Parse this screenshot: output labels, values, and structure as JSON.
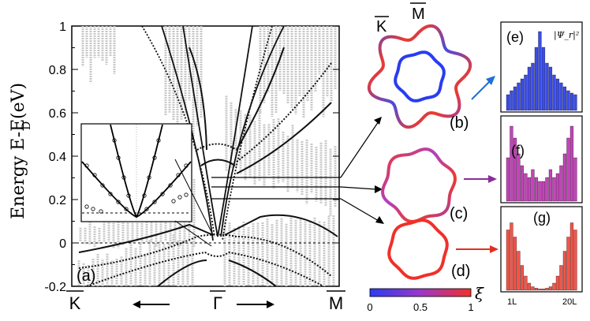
{
  "main_panel": {
    "panel_label": "(a)",
    "ylabel_main": "Energy E-E",
    "ylabel_sub": "D",
    "ylabel_unit": "(eV)",
    "yticks": [
      "1",
      "0.8",
      "0.6",
      "0.4",
      "0.2",
      "0",
      "-0.2"
    ],
    "xticks": [
      "K",
      "Γ",
      "M"
    ]
  },
  "contours": {
    "k_label": "K",
    "m_label": "M",
    "labels": [
      "(b)",
      "(c)",
      "(d)"
    ]
  },
  "colorbar": {
    "ticks": [
      "0",
      "0.5",
      "1"
    ],
    "symbol": "ξ",
    "low_color": "#2a3cf0",
    "mid_color": "#9a37c8",
    "high_color": "#f0302a"
  },
  "histograms": {
    "labels": [
      "(e)",
      "(f)",
      "(g)"
    ],
    "psi_label": "|Ψ_r|²",
    "xlabel_left": "1L",
    "xlabel_right": "20L",
    "colors": [
      "#3b4de8",
      "#c245b8",
      "#f2564a"
    ],
    "e_values": [
      0.2,
      0.25,
      0.3,
      0.35,
      0.4,
      0.45,
      0.55,
      0.6,
      0.8,
      1.0,
      0.8,
      0.6,
      0.55,
      0.45,
      0.4,
      0.35,
      0.3,
      0.25,
      0.22,
      0.2
    ],
    "f_values": [
      0.55,
      0.95,
      0.8,
      0.6,
      0.45,
      0.35,
      0.3,
      0.4,
      0.3,
      0.25,
      0.25,
      0.3,
      0.4,
      0.3,
      0.35,
      0.45,
      0.6,
      0.8,
      0.95,
      0.55
    ],
    "g_values": [
      0.85,
      0.95,
      0.75,
      0.55,
      0.35,
      0.2,
      0.1,
      0.05,
      0.03,
      0.02,
      0.02,
      0.03,
      0.05,
      0.1,
      0.2,
      0.35,
      0.55,
      0.75,
      0.95,
      0.85
    ]
  }
}
